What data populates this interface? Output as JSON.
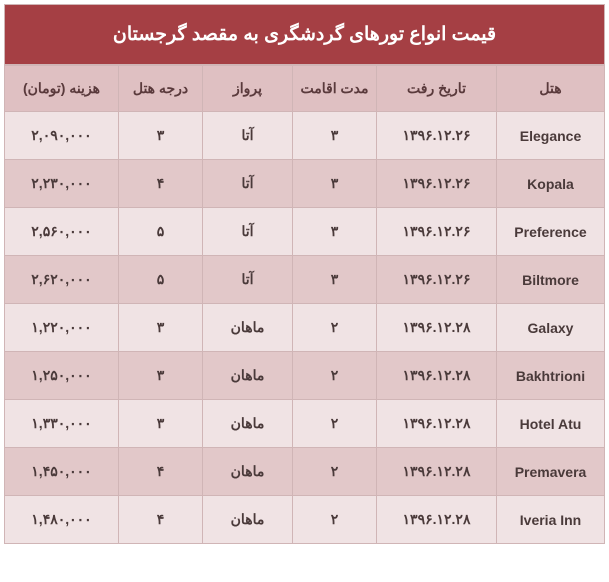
{
  "title": "قیمت انواع تورهای گردشگری به مقصد گرجستان",
  "headers": {
    "hotel": "هتل",
    "date": "تاریخ رفت",
    "duration": "مدت اقامت",
    "flight": "پرواز",
    "grade": "درجه هتل",
    "price": "هزینه (تومان)"
  },
  "rows": [
    {
      "hotel": "Elegance",
      "date": "۱۳۹۶.۱۲.۲۶",
      "duration": "۳",
      "flight": "آتا",
      "grade": "۳",
      "price": "۲,۰۹۰,۰۰۰"
    },
    {
      "hotel": "Kopala",
      "date": "۱۳۹۶.۱۲.۲۶",
      "duration": "۳",
      "flight": "آتا",
      "grade": "۴",
      "price": "۲,۲۳۰,۰۰۰"
    },
    {
      "hotel": "Preference",
      "date": "۱۳۹۶.۱۲.۲۶",
      "duration": "۳",
      "flight": "آتا",
      "grade": "۵",
      "price": "۲,۵۶۰,۰۰۰"
    },
    {
      "hotel": "Biltmore",
      "date": "۱۳۹۶.۱۲.۲۶",
      "duration": "۳",
      "flight": "آتا",
      "grade": "۵",
      "price": "۲,۶۲۰,۰۰۰"
    },
    {
      "hotel": "Galaxy",
      "date": "۱۳۹۶.۱۲.۲۸",
      "duration": "۲",
      "flight": "ماهان",
      "grade": "۳",
      "price": "۱,۲۲۰,۰۰۰"
    },
    {
      "hotel": "Bakhtrioni",
      "date": "۱۳۹۶.۱۲.۲۸",
      "duration": "۲",
      "flight": "ماهان",
      "grade": "۳",
      "price": "۱,۲۵۰,۰۰۰"
    },
    {
      "hotel": "Hotel Atu",
      "date": "۱۳۹۶.۱۲.۲۸",
      "duration": "۲",
      "flight": "ماهان",
      "grade": "۳",
      "price": "۱,۳۳۰,۰۰۰"
    },
    {
      "hotel": "Premavera",
      "date": "۱۳۹۶.۱۲.۲۸",
      "duration": "۲",
      "flight": "ماهان",
      "grade": "۴",
      "price": "۱,۴۵۰,۰۰۰"
    },
    {
      "hotel": "Iveria Inn",
      "date": "۱۳۹۶.۱۲.۲۸",
      "duration": "۲",
      "flight": "ماهان",
      "grade": "۴",
      "price": "۱,۴۸۰,۰۰۰"
    }
  ],
  "colors": {
    "title_bg": "#a53f44",
    "title_text": "#ffffff",
    "header_bg": "#dfc0c2",
    "row_odd_bg": "#f0e3e4",
    "row_even_bg": "#e2c8c9",
    "border": "#d0b5b6",
    "text": "#4a3a3a"
  }
}
